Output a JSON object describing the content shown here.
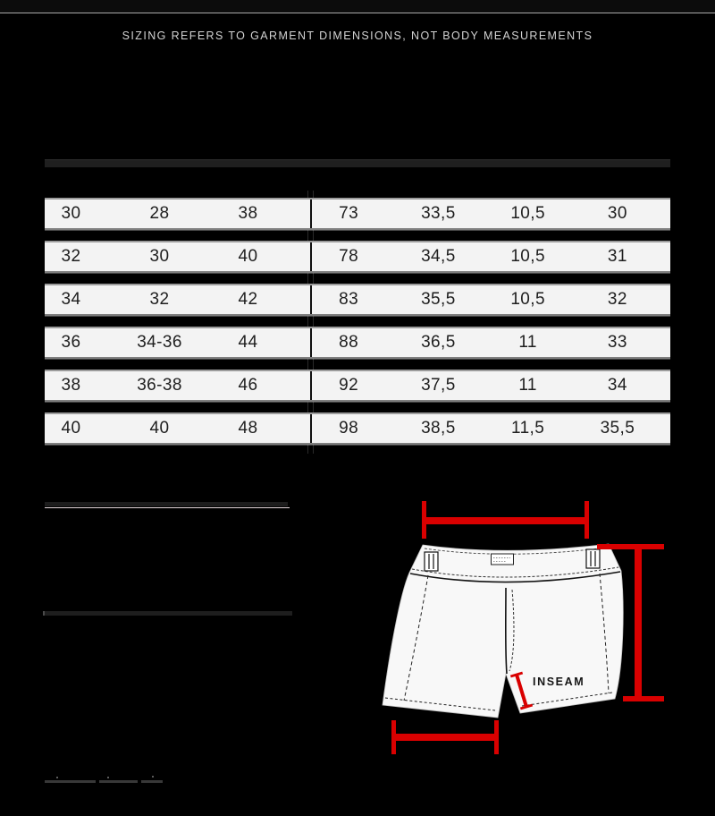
{
  "page": {
    "background": "#000000",
    "accent_red": "#d90000",
    "row_color": "#f3f3f3"
  },
  "header": {
    "notice": "SIZING REFERS TO GARMENT DIMENSIONS, NOT BODY MEASUREMENTS"
  },
  "table": {
    "left_columns": 3,
    "right_columns": 4,
    "rows": [
      {
        "cells": [
          "30",
          "28",
          "38",
          "73",
          "33,5",
          "10,5",
          "30"
        ]
      },
      {
        "cells": [
          "32",
          "30",
          "40",
          "78",
          "34,5",
          "10,5",
          "31"
        ]
      },
      {
        "cells": [
          "34",
          "32",
          "42",
          "83",
          "35,5",
          "10,5",
          "32"
        ]
      },
      {
        "cells": [
          "36",
          "34-36",
          "44",
          "88",
          "36,5",
          "11",
          "33"
        ]
      },
      {
        "cells": [
          "38",
          "36-38",
          "46",
          "92",
          "37,5",
          "11",
          "34"
        ]
      },
      {
        "cells": [
          "40",
          "40",
          "48",
          "98",
          "38,5",
          "11,5",
          "35,5"
        ]
      }
    ]
  },
  "diagram": {
    "inseam_label": "INSEAM"
  }
}
